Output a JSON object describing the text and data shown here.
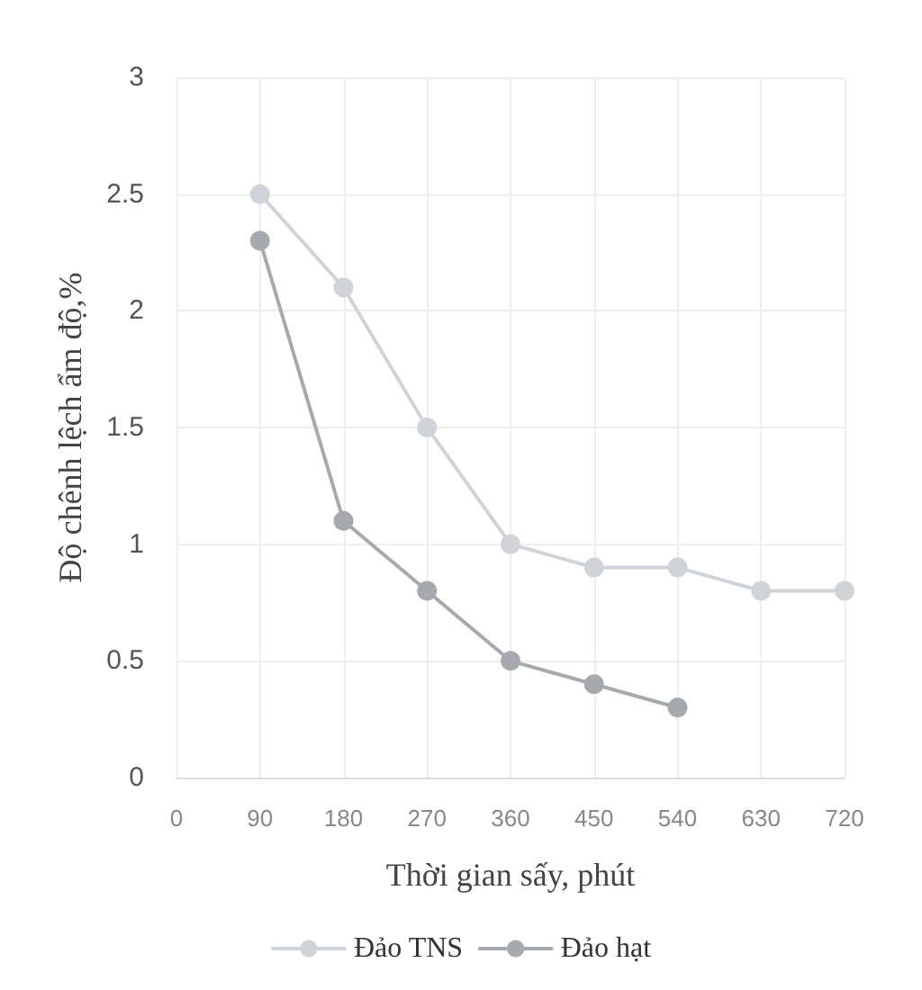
{
  "chart_data": {
    "type": "line",
    "xlabel": "Thời gian sấy, phút",
    "ylabel": "Độ chênh lệch ẩm độ,%",
    "xlim": [
      0,
      720
    ],
    "xticks": [
      0,
      90,
      180,
      270,
      360,
      450,
      540,
      630,
      720
    ],
    "ylim": [
      0,
      3
    ],
    "yticks": [
      0,
      0.5,
      1,
      1.5,
      2,
      2.5,
      3
    ],
    "grid": true,
    "legend": "bottom",
    "marker": "circle",
    "line_style": "solid",
    "series": [
      {
        "name": "Đảo TNS",
        "color": "#d0d4d8",
        "x": [
          90,
          180,
          270,
          360,
          450,
          540,
          630,
          720
        ],
        "values": [
          2.5,
          2.1,
          1.5,
          1.0,
          0.9,
          0.9,
          0.8,
          0.8
        ]
      },
      {
        "name": "Đảo hạt",
        "color": "#a6aaae",
        "x": [
          90,
          180,
          270,
          360,
          450,
          540
        ],
        "values": [
          2.3,
          1.1,
          0.8,
          0.5,
          0.4,
          0.3
        ]
      }
    ]
  }
}
